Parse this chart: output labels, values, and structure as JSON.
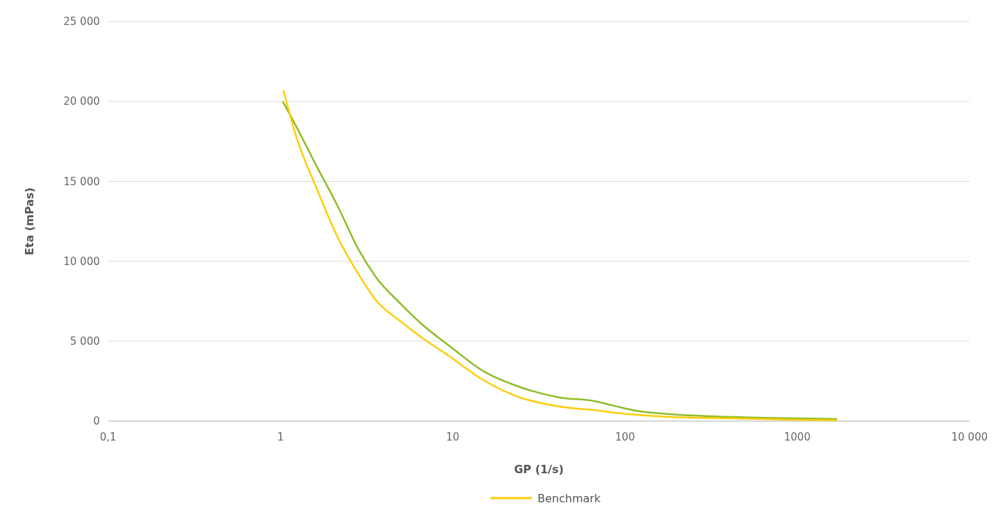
{
  "chart_data": {
    "type": "line",
    "xlabel": "GP (1/s)",
    "ylabel": "Eta (mPas)",
    "log": "x",
    "xlim": [
      0.1,
      10000
    ],
    "xticks": [
      {
        "value": 0.1,
        "label": "0,1"
      },
      1,
      10,
      100,
      1000,
      {
        "value": 10000,
        "label": "10 000"
      }
    ],
    "ylim": [
      0,
      25000
    ],
    "yticks": [
      0,
      {
        "value": 5000,
        "label": "5 000"
      },
      {
        "value": 10000,
        "label": "10 000"
      },
      {
        "value": 15000,
        "label": "15 000"
      },
      {
        "value": 20000,
        "label": "20 000"
      },
      {
        "value": 25000,
        "label": "25 000"
      }
    ],
    "grid": "y",
    "legend": "bottom",
    "marker": "none",
    "line_style": "solid",
    "series": [
      {
        "color": "#8dbb25",
        "x": [
          1.03,
          1.24,
          1.63,
          2.16,
          2.85,
          3.59,
          4.97,
          6.56,
          9.5,
          15.1,
          24,
          41.8,
          66,
          87,
          116,
          183,
          424,
          977,
          1700
        ],
        "values": [
          20000,
          18400,
          15900,
          13400,
          10700,
          9000,
          7350,
          6100,
          4730,
          3120,
          2170,
          1480,
          1260,
          950,
          650,
          430,
          260,
          170,
          130
        ]
      },
      {
        "name": "Benchmark",
        "color": "#ffcc00",
        "x": [
          1.04,
          1.24,
          1.63,
          2.16,
          2.85,
          3.59,
          4.97,
          6.56,
          9.5,
          15.1,
          24,
          41.8,
          66,
          105,
          183,
          424,
          977,
          1700
        ],
        "values": [
          20700,
          17750,
          14500,
          11460,
          9160,
          7550,
          6250,
          5250,
          4080,
          2560,
          1520,
          910,
          690,
          430,
          260,
          170,
          90,
          50
        ]
      }
    ]
  }
}
